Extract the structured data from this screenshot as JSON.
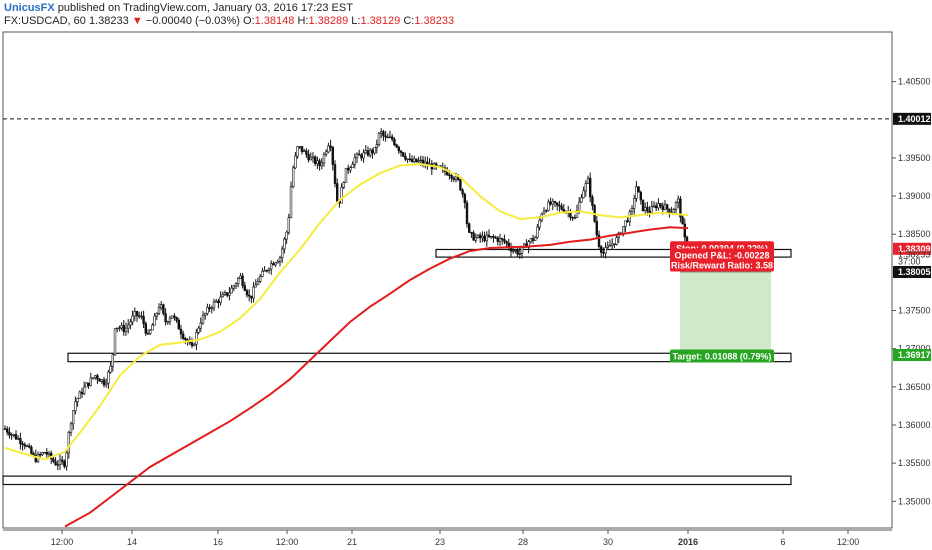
{
  "header": {
    "author": "UnicusFX",
    "published": "published on TradingView.com, January 03, 2016 17:23 EST",
    "symbol": "FX:USDCAD, 60",
    "last": "1.38233",
    "arrow": "▼",
    "change": "−0.00040 (−0.03%)",
    "o_label": "O:",
    "o_value": "1.38148",
    "h_label": "H:",
    "h_value": "1.38289",
    "l_label": "L:",
    "l_value": "1.38129",
    "c_label": "C:",
    "c_value": "1.38233"
  },
  "colors": {
    "candle": "#111111",
    "ma_fast": "#f5ec3d",
    "ma_slow": "#e21b1b",
    "stop_fill": "#f5c9cf",
    "target_fill": "#cde9c6",
    "stop_label": "#e8202a",
    "target_label": "#26a620",
    "badge_dark": "#111111"
  },
  "chart_data": {
    "type": "candlestick",
    "ylim": [
      1.3465,
      1.4115
    ],
    "yticks": [
      "1.40500",
      "1.39500",
      "1.39000",
      "1.38500",
      "1.37500",
      "1.37000",
      "1.36500",
      "1.36000",
      "1.35500",
      "1.35000"
    ],
    "xticks": [
      "12:00",
      "14",
      "16",
      "12:00",
      "21",
      "23",
      "28",
      "30",
      "2016",
      "6",
      "12:00"
    ],
    "xtick_positions": [
      62,
      132,
      218,
      287,
      352,
      440,
      523,
      608,
      688,
      783,
      848
    ],
    "price_badges": [
      {
        "label": "1.40012",
        "value": 1.40012,
        "style": "dark"
      },
      {
        "label": "1.38309",
        "value": 1.38309,
        "style": "red"
      },
      {
        "label": "1.38233",
        "value": 1.38233,
        "style": "plain"
      },
      {
        "label": "37:00",
        "value": 1.38145,
        "style": "plain"
      },
      {
        "label": "1.38005",
        "value": 1.38005,
        "style": "dark"
      },
      {
        "label": "1.36917",
        "value": 1.36917,
        "style": "green"
      }
    ],
    "resistance_line": 1.40012,
    "zones": [
      {
        "top": 1.383,
        "bottom": 1.382
      },
      {
        "top": 1.3694,
        "bottom": 1.3683
      },
      {
        "top": 1.3533,
        "bottom": 1.3522
      }
    ],
    "position": {
      "entry": 1.38005,
      "stop": 1.38309,
      "target": 1.36917,
      "stop_label": "Stop: 0.00304 (0.22%)",
      "pnl_label": "Opened P&L: -0.00228",
      "rr_label": "Risk/Reward Ratio: 3.58",
      "target_label": "Target: 0.01088 (0.79%)"
    },
    "price_path": [
      [
        5,
        1.3595
      ],
      [
        15,
        1.3585
      ],
      [
        25,
        1.3575
      ],
      [
        35,
        1.3555
      ],
      [
        45,
        1.3565
      ],
      [
        55,
        1.355
      ],
      [
        65,
        1.355
      ],
      [
        70,
        1.36
      ],
      [
        75,
        1.363
      ],
      [
        85,
        1.365
      ],
      [
        95,
        1.3665
      ],
      [
        105,
        1.3655
      ],
      [
        112,
        1.368
      ],
      [
        115,
        1.373
      ],
      [
        125,
        1.3725
      ],
      [
        135,
        1.3745
      ],
      [
        142,
        1.374
      ],
      [
        148,
        1.3715
      ],
      [
        155,
        1.374
      ],
      [
        160,
        1.376
      ],
      [
        165,
        1.3735
      ],
      [
        172,
        1.3745
      ],
      [
        182,
        1.372
      ],
      [
        192,
        1.37
      ],
      [
        200,
        1.3735
      ],
      [
        210,
        1.3755
      ],
      [
        220,
        1.3765
      ],
      [
        230,
        1.3775
      ],
      [
        240,
        1.3795
      ],
      [
        250,
        1.3765
      ],
      [
        258,
        1.379
      ],
      [
        270,
        1.381
      ],
      [
        280,
        1.382
      ],
      [
        288,
        1.386
      ],
      [
        292,
        1.393
      ],
      [
        298,
        1.3965
      ],
      [
        310,
        1.395
      ],
      [
        320,
        1.394
      ],
      [
        330,
        1.3975
      ],
      [
        338,
        1.3885
      ],
      [
        345,
        1.393
      ],
      [
        355,
        1.395
      ],
      [
        365,
        1.3955
      ],
      [
        375,
        1.396
      ],
      [
        380,
        1.3985
      ],
      [
        385,
        1.3975
      ],
      [
        392,
        1.3975
      ],
      [
        400,
        1.396
      ],
      [
        410,
        1.3945
      ],
      [
        420,
        1.3945
      ],
      [
        430,
        1.394
      ],
      [
        440,
        1.3935
      ],
      [
        450,
        1.393
      ],
      [
        458,
        1.392
      ],
      [
        465,
        1.3895
      ],
      [
        468,
        1.385
      ],
      [
        475,
        1.3845
      ],
      [
        485,
        1.3845
      ],
      [
        495,
        1.3845
      ],
      [
        505,
        1.384
      ],
      [
        512,
        1.383
      ],
      [
        520,
        1.3825
      ],
      [
        528,
        1.384
      ],
      [
        535,
        1.3845
      ],
      [
        542,
        1.388
      ],
      [
        550,
        1.389
      ],
      [
        560,
        1.3885
      ],
      [
        568,
        1.388
      ],
      [
        575,
        1.387
      ],
      [
        582,
        1.3905
      ],
      [
        588,
        1.392
      ],
      [
        593,
        1.388
      ],
      [
        598,
        1.384
      ],
      [
        603,
        1.3825
      ],
      [
        610,
        1.3835
      ],
      [
        618,
        1.3845
      ],
      [
        625,
        1.3865
      ],
      [
        632,
        1.388
      ],
      [
        636,
        1.3915
      ],
      [
        642,
        1.3885
      ],
      [
        650,
        1.388
      ],
      [
        658,
        1.389
      ],
      [
        665,
        1.3885
      ],
      [
        672,
        1.388
      ],
      [
        678,
        1.3895
      ],
      [
        684,
        1.3848
      ],
      [
        688,
        1.3823
      ]
    ],
    "ma_fast_path": [
      [
        5,
        1.357
      ],
      [
        25,
        1.3562
      ],
      [
        45,
        1.3555
      ],
      [
        65,
        1.3565
      ],
      [
        80,
        1.359
      ],
      [
        100,
        1.3625
      ],
      [
        120,
        1.3665
      ],
      [
        140,
        1.369
      ],
      [
        160,
        1.3705
      ],
      [
        180,
        1.3708
      ],
      [
        200,
        1.3712
      ],
      [
        220,
        1.3722
      ],
      [
        240,
        1.374
      ],
      [
        260,
        1.3765
      ],
      [
        280,
        1.38
      ],
      [
        300,
        1.383
      ],
      [
        320,
        1.3865
      ],
      [
        340,
        1.3895
      ],
      [
        360,
        1.3915
      ],
      [
        380,
        1.393
      ],
      [
        400,
        1.394
      ],
      [
        420,
        1.3942
      ],
      [
        440,
        1.3938
      ],
      [
        460,
        1.3925
      ],
      [
        480,
        1.39
      ],
      [
        500,
        1.388
      ],
      [
        520,
        1.387
      ],
      [
        540,
        1.3872
      ],
      [
        560,
        1.3878
      ],
      [
        580,
        1.388
      ],
      [
        600,
        1.3875
      ],
      [
        620,
        1.3872
      ],
      [
        640,
        1.3875
      ],
      [
        660,
        1.3878
      ],
      [
        688,
        1.3875
      ]
    ],
    "ma_slow_path": [
      [
        65,
        1.3467
      ],
      [
        90,
        1.3485
      ],
      [
        110,
        1.3505
      ],
      [
        130,
        1.3525
      ],
      [
        150,
        1.3545
      ],
      [
        170,
        1.356
      ],
      [
        190,
        1.3575
      ],
      [
        210,
        1.359
      ],
      [
        230,
        1.3605
      ],
      [
        250,
        1.3622
      ],
      [
        270,
        1.364
      ],
      [
        290,
        1.366
      ],
      [
        310,
        1.3685
      ],
      [
        330,
        1.371
      ],
      [
        350,
        1.3735
      ],
      [
        370,
        1.3755
      ],
      [
        390,
        1.3772
      ],
      [
        410,
        1.379
      ],
      [
        430,
        1.3805
      ],
      [
        450,
        1.3818
      ],
      [
        470,
        1.3828
      ],
      [
        490,
        1.3832
      ],
      [
        510,
        1.3833
      ],
      [
        530,
        1.3834
      ],
      [
        550,
        1.3836
      ],
      [
        570,
        1.384
      ],
      [
        590,
        1.3843
      ],
      [
        610,
        1.3848
      ],
      [
        630,
        1.3852
      ],
      [
        650,
        1.3856
      ],
      [
        670,
        1.3859
      ],
      [
        688,
        1.3858
      ]
    ]
  }
}
